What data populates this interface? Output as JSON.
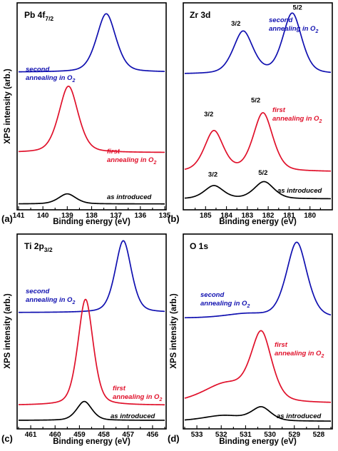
{
  "chart_data": [
    {
      "type": "line",
      "panel_label": "(a)",
      "title_main": "Pb 4f",
      "title_sub": "7/2",
      "xlabel": "Binding energy (eV)",
      "ylabel": "XPS intensity (arb.)",
      "xlim": [
        141,
        135
      ],
      "xticks": [
        "141",
        "140",
        "139",
        "138",
        "137",
        "136",
        "135"
      ],
      "colors": {
        "as_introduced": "#000000",
        "first": "#e0102a",
        "second": "#1010b0"
      },
      "series": [
        {
          "key": "second",
          "label_line1": "second",
          "label_line2": "annealing in O",
          "label_sub": "2",
          "baseline": 0.67,
          "peaks": [
            {
              "center": 137.4,
              "height": 0.29,
              "width": 0.42
            }
          ]
        },
        {
          "key": "first",
          "label_line1": "first",
          "label_line2": "annealing in O",
          "label_sub": "2",
          "baseline": 0.27,
          "peaks": [
            {
              "center": 138.95,
              "height": 0.33,
              "width": 0.42
            }
          ]
        },
        {
          "key": "as_introduced",
          "label_line1": "as introduced",
          "baseline": 0.015,
          "peaks": [
            {
              "center": 139.0,
              "height": 0.05,
              "width": 0.38
            }
          ]
        }
      ],
      "peak_labels": []
    },
    {
      "type": "line",
      "panel_label": "(b)",
      "title_main": "Zr 3d",
      "title_sub": "",
      "xlabel": "Binding energy (eV)",
      "ylabel": "",
      "xlim": [
        186,
        179
      ],
      "xticks": [
        "185",
        "184",
        "183",
        "182",
        "181",
        "180"
      ],
      "colors": {
        "as_introduced": "#000000",
        "first": "#e0102a",
        "second": "#1010b0"
      },
      "series": [
        {
          "key": "second",
          "label_line1": "second",
          "label_line2": "annealing in O",
          "label_sub": "2",
          "baseline": 0.66,
          "peaks": [
            {
              "center": 183.2,
              "height": 0.21,
              "width": 0.5
            },
            {
              "center": 180.85,
              "height": 0.3,
              "width": 0.48
            }
          ]
        },
        {
          "key": "first",
          "label_line1": "first",
          "label_line2": "annealing in O",
          "label_sub": "2",
          "baseline": 0.175,
          "peaks": [
            {
              "center": 184.6,
              "height": 0.2,
              "width": 0.48
            },
            {
              "center": 182.25,
              "height": 0.29,
              "width": 0.5
            }
          ]
        },
        {
          "key": "as_introduced",
          "label_line1": "as introduced",
          "baseline": 0.04,
          "peaks": [
            {
              "center": 184.6,
              "height": 0.065,
              "width": 0.48
            },
            {
              "center": 182.2,
              "height": 0.085,
              "width": 0.5
            }
          ]
        }
      ],
      "peak_labels": [
        {
          "text": "3/2",
          "x": 183.55,
          "y": 0.9
        },
        {
          "text": "5/2",
          "x": 180.6,
          "y": 0.98
        },
        {
          "text": "3/2",
          "x": 184.85,
          "y": 0.45
        },
        {
          "text": "5/2",
          "x": 182.6,
          "y": 0.52
        },
        {
          "text": "3/2",
          "x": 184.65,
          "y": 0.15
        },
        {
          "text": "5/2",
          "x": 182.25,
          "y": 0.16
        }
      ]
    },
    {
      "type": "line",
      "panel_label": "(c)",
      "title_main": "Ti 2p",
      "title_sub": "3/2",
      "xlabel": "Binding energy (eV)",
      "ylabel": "XPS intensity (arb.)",
      "xlim": [
        461.5,
        455.5
      ],
      "xticks": [
        "461",
        "460",
        "459",
        "458",
        "457",
        "456"
      ],
      "colors": {
        "as_introduced": "#000000",
        "first": "#e0102a",
        "second": "#1010b0"
      },
      "series": [
        {
          "key": "second",
          "label_line1": "second",
          "label_line2": "annealing in O",
          "label_sub": "2",
          "baseline": 0.6,
          "peaks": [
            {
              "center": 457.2,
              "height": 0.38,
              "width": 0.35
            }
          ]
        },
        {
          "key": "first",
          "label_line1": "first",
          "label_line2": "annealing in O",
          "label_sub": "2",
          "baseline": 0.11,
          "peaks": [
            {
              "center": 458.75,
              "height": 0.56,
              "width": 0.33
            }
          ]
        },
        {
          "key": "as_introduced",
          "label_line1": "as introduced",
          "baseline": 0.03,
          "peaks": [
            {
              "center": 458.8,
              "height": 0.1,
              "width": 0.33
            }
          ]
        }
      ],
      "peak_labels": []
    },
    {
      "type": "line",
      "panel_label": "(d)",
      "title_main": "O 1s",
      "title_sub": "",
      "xlabel": "Binding energy (eV)",
      "ylabel": "XPS intensity (arb.)",
      "xlim": [
        533.5,
        527.5
      ],
      "xticks": [
        "533",
        "532",
        "531",
        "530",
        "529",
        "528"
      ],
      "colors": {
        "as_introduced": "#000000",
        "first": "#e0102a",
        "second": "#1010b0"
      },
      "series": [
        {
          "key": "second",
          "label_line1": "second",
          "label_line2": "annealing in O",
          "label_sub": "2",
          "baseline": 0.57,
          "peaks": [
            {
              "center": 528.9,
              "height": 0.4,
              "width": 0.45
            },
            {
              "center": 531.0,
              "height": 0.02,
              "width": 0.9
            }
          ]
        },
        {
          "key": "first",
          "label_line1": "first",
          "label_line2": "annealing in O",
          "label_sub": "2",
          "baseline": 0.12,
          "peaks": [
            {
              "center": 530.35,
              "height": 0.35,
              "width": 0.45
            },
            {
              "center": 531.8,
              "height": 0.1,
              "width": 1.0
            }
          ]
        },
        {
          "key": "as_introduced",
          "label_line1": "as introduced",
          "baseline": 0.025,
          "peaks": [
            {
              "center": 530.35,
              "height": 0.07,
              "width": 0.42
            },
            {
              "center": 531.9,
              "height": 0.03,
              "width": 0.9
            }
          ]
        }
      ],
      "peak_labels": []
    }
  ]
}
